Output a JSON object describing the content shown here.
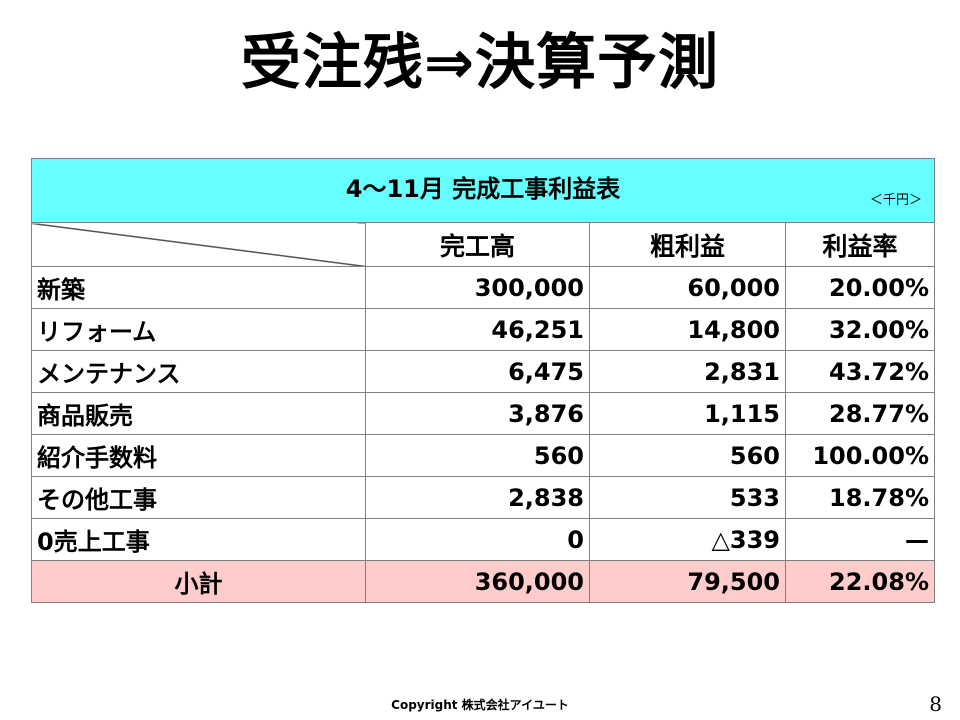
{
  "title": "受注残⇒決算予測",
  "table": {
    "caption": "4～11月  完成工事利益表",
    "unit": "＜千円＞",
    "headers": [
      "",
      "完工高",
      "粗利益",
      "利益率"
    ],
    "rows": [
      {
        "label": "新築",
        "sales": "300,000",
        "profit": "60,000",
        "rate": "20.00%"
      },
      {
        "label": "リフォーム",
        "sales": "46,251",
        "profit": "14,800",
        "rate": "32.00%"
      },
      {
        "label": "メンテナンス",
        "sales": "6,475",
        "profit": "2,831",
        "rate": "43.72%"
      },
      {
        "label": "商品販売",
        "sales": "3,876",
        "profit": "1,115",
        "rate": "28.77%"
      },
      {
        "label": "紹介手数料",
        "sales": "560",
        "profit": "560",
        "rate": "100.00%"
      },
      {
        "label": "その他工事",
        "sales": "2,838",
        "profit": "533",
        "rate": "18.78%"
      },
      {
        "label": "0売上工事",
        "sales": "0",
        "profit": "△339",
        "rate": "—"
      }
    ],
    "total": {
      "label": "小計",
      "sales": "360,000",
      "profit": "79,500",
      "rate": "22.08%"
    },
    "colors": {
      "caption_bg": "#66ffff",
      "total_bg": "#ffcccc"
    }
  },
  "footer": {
    "copyright": "Copyright  株式会社アイユート",
    "page_number": "8"
  }
}
